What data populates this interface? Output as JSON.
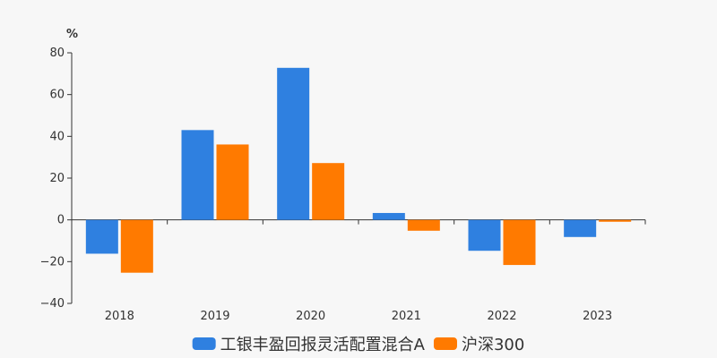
{
  "chart_data": {
    "type": "bar",
    "unit_label": "%",
    "categories": [
      "2018",
      "2019",
      "2020",
      "2021",
      "2022",
      "2023"
    ],
    "series": [
      {
        "name": "工银丰盈回报灵活配置混合A",
        "color": "#2f80e0",
        "values": [
          -16.2,
          43.0,
          72.8,
          3.3,
          -14.8,
          -8.2
        ]
      },
      {
        "name": "沪深300",
        "color": "#ff7a00",
        "values": [
          -25.3,
          36.1,
          27.2,
          -5.2,
          -21.6,
          -0.9
        ]
      }
    ],
    "ylim": [
      -40,
      80
    ],
    "yticks": [
      -40,
      -20,
      0,
      20,
      40,
      60,
      80
    ],
    "ytick_labels": [
      "−40",
      "−20",
      "0",
      "20",
      "40",
      "60",
      "80"
    ],
    "legend_position": "bottom-center",
    "grid": false
  }
}
